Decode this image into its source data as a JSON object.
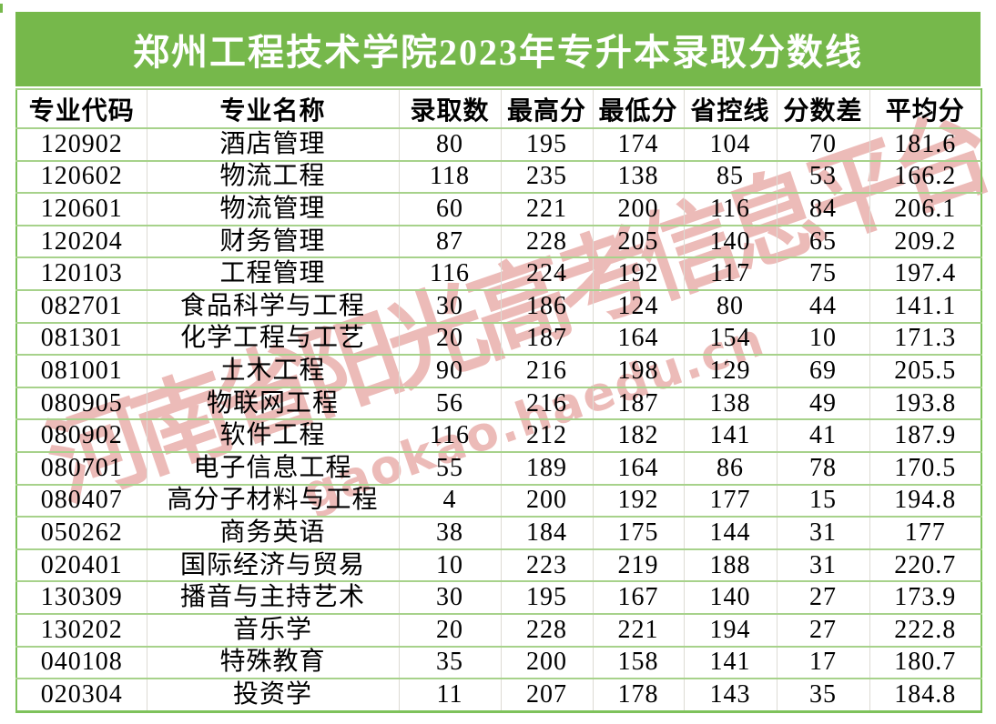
{
  "chart_data": {
    "type": "table",
    "title": "郑州工程技术学院2023年专升本录取分数线",
    "columns": [
      "专业代码",
      "专业名称",
      "录取数",
      "最高分",
      "最低分",
      "省控线",
      "分数差",
      "平均分"
    ],
    "rows": [
      [
        "120902",
        "酒店管理",
        "80",
        "195",
        "174",
        "104",
        "70",
        "181.6"
      ],
      [
        "120602",
        "物流工程",
        "118",
        "235",
        "138",
        "85",
        "53",
        "166.2"
      ],
      [
        "120601",
        "物流管理",
        "60",
        "221",
        "200",
        "116",
        "84",
        "206.1"
      ],
      [
        "120204",
        "财务管理",
        "87",
        "228",
        "205",
        "140",
        "65",
        "209.2"
      ],
      [
        "120103",
        "工程管理",
        "116",
        "224",
        "192",
        "117",
        "75",
        "197.4"
      ],
      [
        "082701",
        "食品科学与工程",
        "30",
        "186",
        "124",
        "80",
        "44",
        "141.1"
      ],
      [
        "081301",
        "化学工程与工艺",
        "20",
        "187",
        "164",
        "154",
        "10",
        "171.3"
      ],
      [
        "081001",
        "土木工程",
        "90",
        "216",
        "198",
        "129",
        "69",
        "205.5"
      ],
      [
        "080905",
        "物联网工程",
        "56",
        "216",
        "187",
        "138",
        "49",
        "193.8"
      ],
      [
        "080902",
        "软件工程",
        "116",
        "212",
        "182",
        "141",
        "41",
        "187.9"
      ],
      [
        "080701",
        "电子信息工程",
        "55",
        "189",
        "164",
        "86",
        "78",
        "170.5"
      ],
      [
        "080407",
        "高分子材料与工程",
        "4",
        "200",
        "192",
        "177",
        "15",
        "194.8"
      ],
      [
        "050262",
        "商务英语",
        "38",
        "184",
        "175",
        "144",
        "31",
        "177"
      ],
      [
        "020401",
        "国际经济与贸易",
        "10",
        "223",
        "219",
        "188",
        "31",
        "220.7"
      ],
      [
        "130309",
        "播音与主持艺术",
        "30",
        "195",
        "167",
        "140",
        "27",
        "173.9"
      ],
      [
        "130202",
        "音乐学",
        "20",
        "228",
        "221",
        "194",
        "27",
        "222.8"
      ],
      [
        "040108",
        "特殊教育",
        "35",
        "200",
        "158",
        "141",
        "17",
        "180.7"
      ],
      [
        "020304",
        "投资学",
        "11",
        "207",
        "178",
        "143",
        "35",
        "184.8"
      ]
    ]
  },
  "watermark": {
    "line1": "河南省阳光高考信息平台",
    "line2": "gaokao.haedu.cn"
  },
  "colors": {
    "title_bg": "#76b84b",
    "outer_border": "#7ec25b",
    "row_line": "#a7d28b",
    "col_line": "#dddbd4",
    "watermark": "#cf4f47",
    "title_text": "#ffffff",
    "cell_text": "#000000"
  }
}
